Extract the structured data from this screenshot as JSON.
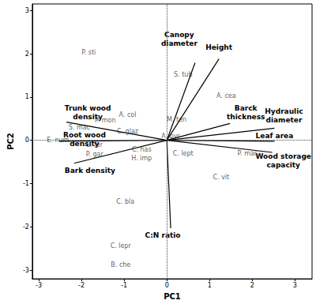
{
  "chart_data": {
    "type": "biplot",
    "x_label": "PC1",
    "y_label": "PC2",
    "xlim": [
      -3.15,
      3.4
    ],
    "ylim": [
      -3.2,
      3.15
    ],
    "xticks": [
      -3,
      -2,
      -1,
      0,
      1,
      2,
      3
    ],
    "yticks": [
      -3,
      -2,
      -1,
      0,
      1,
      2,
      3
    ],
    "grid": false,
    "reference_lines": {
      "x": 0,
      "y": 0
    },
    "vector_origin": [
      0,
      0
    ],
    "points": [
      {
        "label": "P. sti",
        "x": -1.83,
        "y": 2.02
      },
      {
        "label": "S. tub",
        "x": 0.38,
        "y": 1.51
      },
      {
        "label": "A. cea",
        "x": 1.39,
        "y": 1.02
      },
      {
        "label": "A. col",
        "x": -0.92,
        "y": 0.58
      },
      {
        "label": "P. mon",
        "x": -1.44,
        "y": 0.46
      },
      {
        "label": "M. ten",
        "x": 0.23,
        "y": 0.47
      },
      {
        "label": "S. mac",
        "x": -2.05,
        "y": 0.3
      },
      {
        "label": "C. glaz",
        "x": -0.92,
        "y": 0.21
      },
      {
        "label": "A. pyr",
        "x": 0.09,
        "y": 0.09
      },
      {
        "label": "E. num",
        "x": -2.55,
        "y": 0.0
      },
      {
        "label": "C. has",
        "x": -0.59,
        "y": -0.21
      },
      {
        "label": "L. fer",
        "x": -1.69,
        "y": -0.11
      },
      {
        "label": "C. lept",
        "x": 0.38,
        "y": -0.3
      },
      {
        "label": "P. mar",
        "x": 1.88,
        "y": -0.3
      },
      {
        "label": "P. gar",
        "x": -1.69,
        "y": -0.33
      },
      {
        "label": "H. imp",
        "x": -0.59,
        "y": -0.42
      },
      {
        "label": "C. vit",
        "x": 1.27,
        "y": -0.86
      },
      {
        "label": "C. bla",
        "x": -0.97,
        "y": -1.42
      },
      {
        "label": "C. lepr",
        "x": -1.08,
        "y": -2.44
      },
      {
        "label": "B. che",
        "x": -1.08,
        "y": -2.88
      }
    ],
    "vectors": [
      {
        "label": "Canopy\ndiameter",
        "x": 0.66,
        "y": 1.79
      },
      {
        "label": "Height",
        "x": 1.22,
        "y": 1.88
      },
      {
        "label": "Barck\nthickness",
        "x": 1.48,
        "y": 0.39
      },
      {
        "label": "Hydraulic\ndiameter",
        "x": 2.52,
        "y": 0.28
      },
      {
        "label": "Leaf area",
        "x": 2.52,
        "y": -0.02
      },
      {
        "label": "Wood storage\ncapacity",
        "x": 2.47,
        "y": -0.28
      },
      {
        "label": "C:N ratio",
        "x": 0.09,
        "y": -2.03
      },
      {
        "label": "Trunk wood\ndensity",
        "x": -2.35,
        "y": 0.42
      },
      {
        "label": "Root wood\ndensity",
        "x": -2.52,
        "y": -0.02
      },
      {
        "label": "Bark density",
        "x": -2.17,
        "y": -0.53
      }
    ]
  }
}
